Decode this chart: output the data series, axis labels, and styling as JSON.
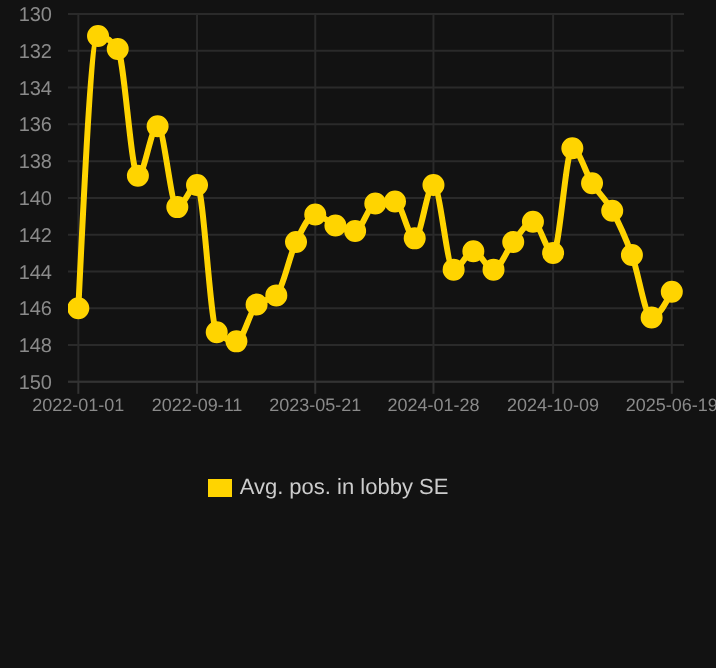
{
  "chart_data": {
    "type": "line",
    "x": [
      "2022-01-01",
      "2022-02-12",
      "2022-03-26",
      "2022-05-08",
      "2022-06-19",
      "2022-07-31",
      "2022-09-11",
      "2022-10-23",
      "2022-12-04",
      "2023-01-16",
      "2023-02-27",
      "2023-04-10",
      "2023-05-21",
      "2023-07-03",
      "2023-08-14",
      "2023-09-26",
      "2023-11-07",
      "2023-12-19",
      "2024-01-28",
      "2024-03-11",
      "2024-04-22",
      "2024-06-04",
      "2024-07-16",
      "2024-08-27",
      "2024-10-09",
      "2024-11-19",
      "2024-12-31",
      "2025-02-12",
      "2025-03-26",
      "2025-05-07",
      "2025-06-19"
    ],
    "series": [
      {
        "name": "Avg. pos. in lobby SE",
        "color": "#ffd400",
        "values": [
          146,
          131.2,
          131.9,
          138.8,
          136.1,
          140.5,
          139.3,
          147.3,
          147.8,
          145.8,
          145.3,
          142.4,
          140.9,
          141.5,
          141.8,
          140.3,
          140.2,
          142.2,
          139.3,
          143.9,
          142.9,
          143.9,
          142.4,
          141.3,
          143.0,
          137.3,
          139.2,
          140.7,
          143.1,
          146.5,
          145.1
        ]
      }
    ],
    "xlim": [
      "2021-12-10",
      "2025-07-15"
    ],
    "xticks": [
      "2022-01-01",
      "2022-09-11",
      "2023-05-21",
      "2024-01-28",
      "2024-10-09",
      "2025-06-19"
    ],
    "ylim": [
      150,
      130
    ],
    "yticks": [
      130,
      132,
      134,
      136,
      138,
      140,
      142,
      144,
      146,
      148,
      150
    ],
    "grid": true,
    "legend": "bottom",
    "marker": "circle",
    "line_style": "solid"
  }
}
